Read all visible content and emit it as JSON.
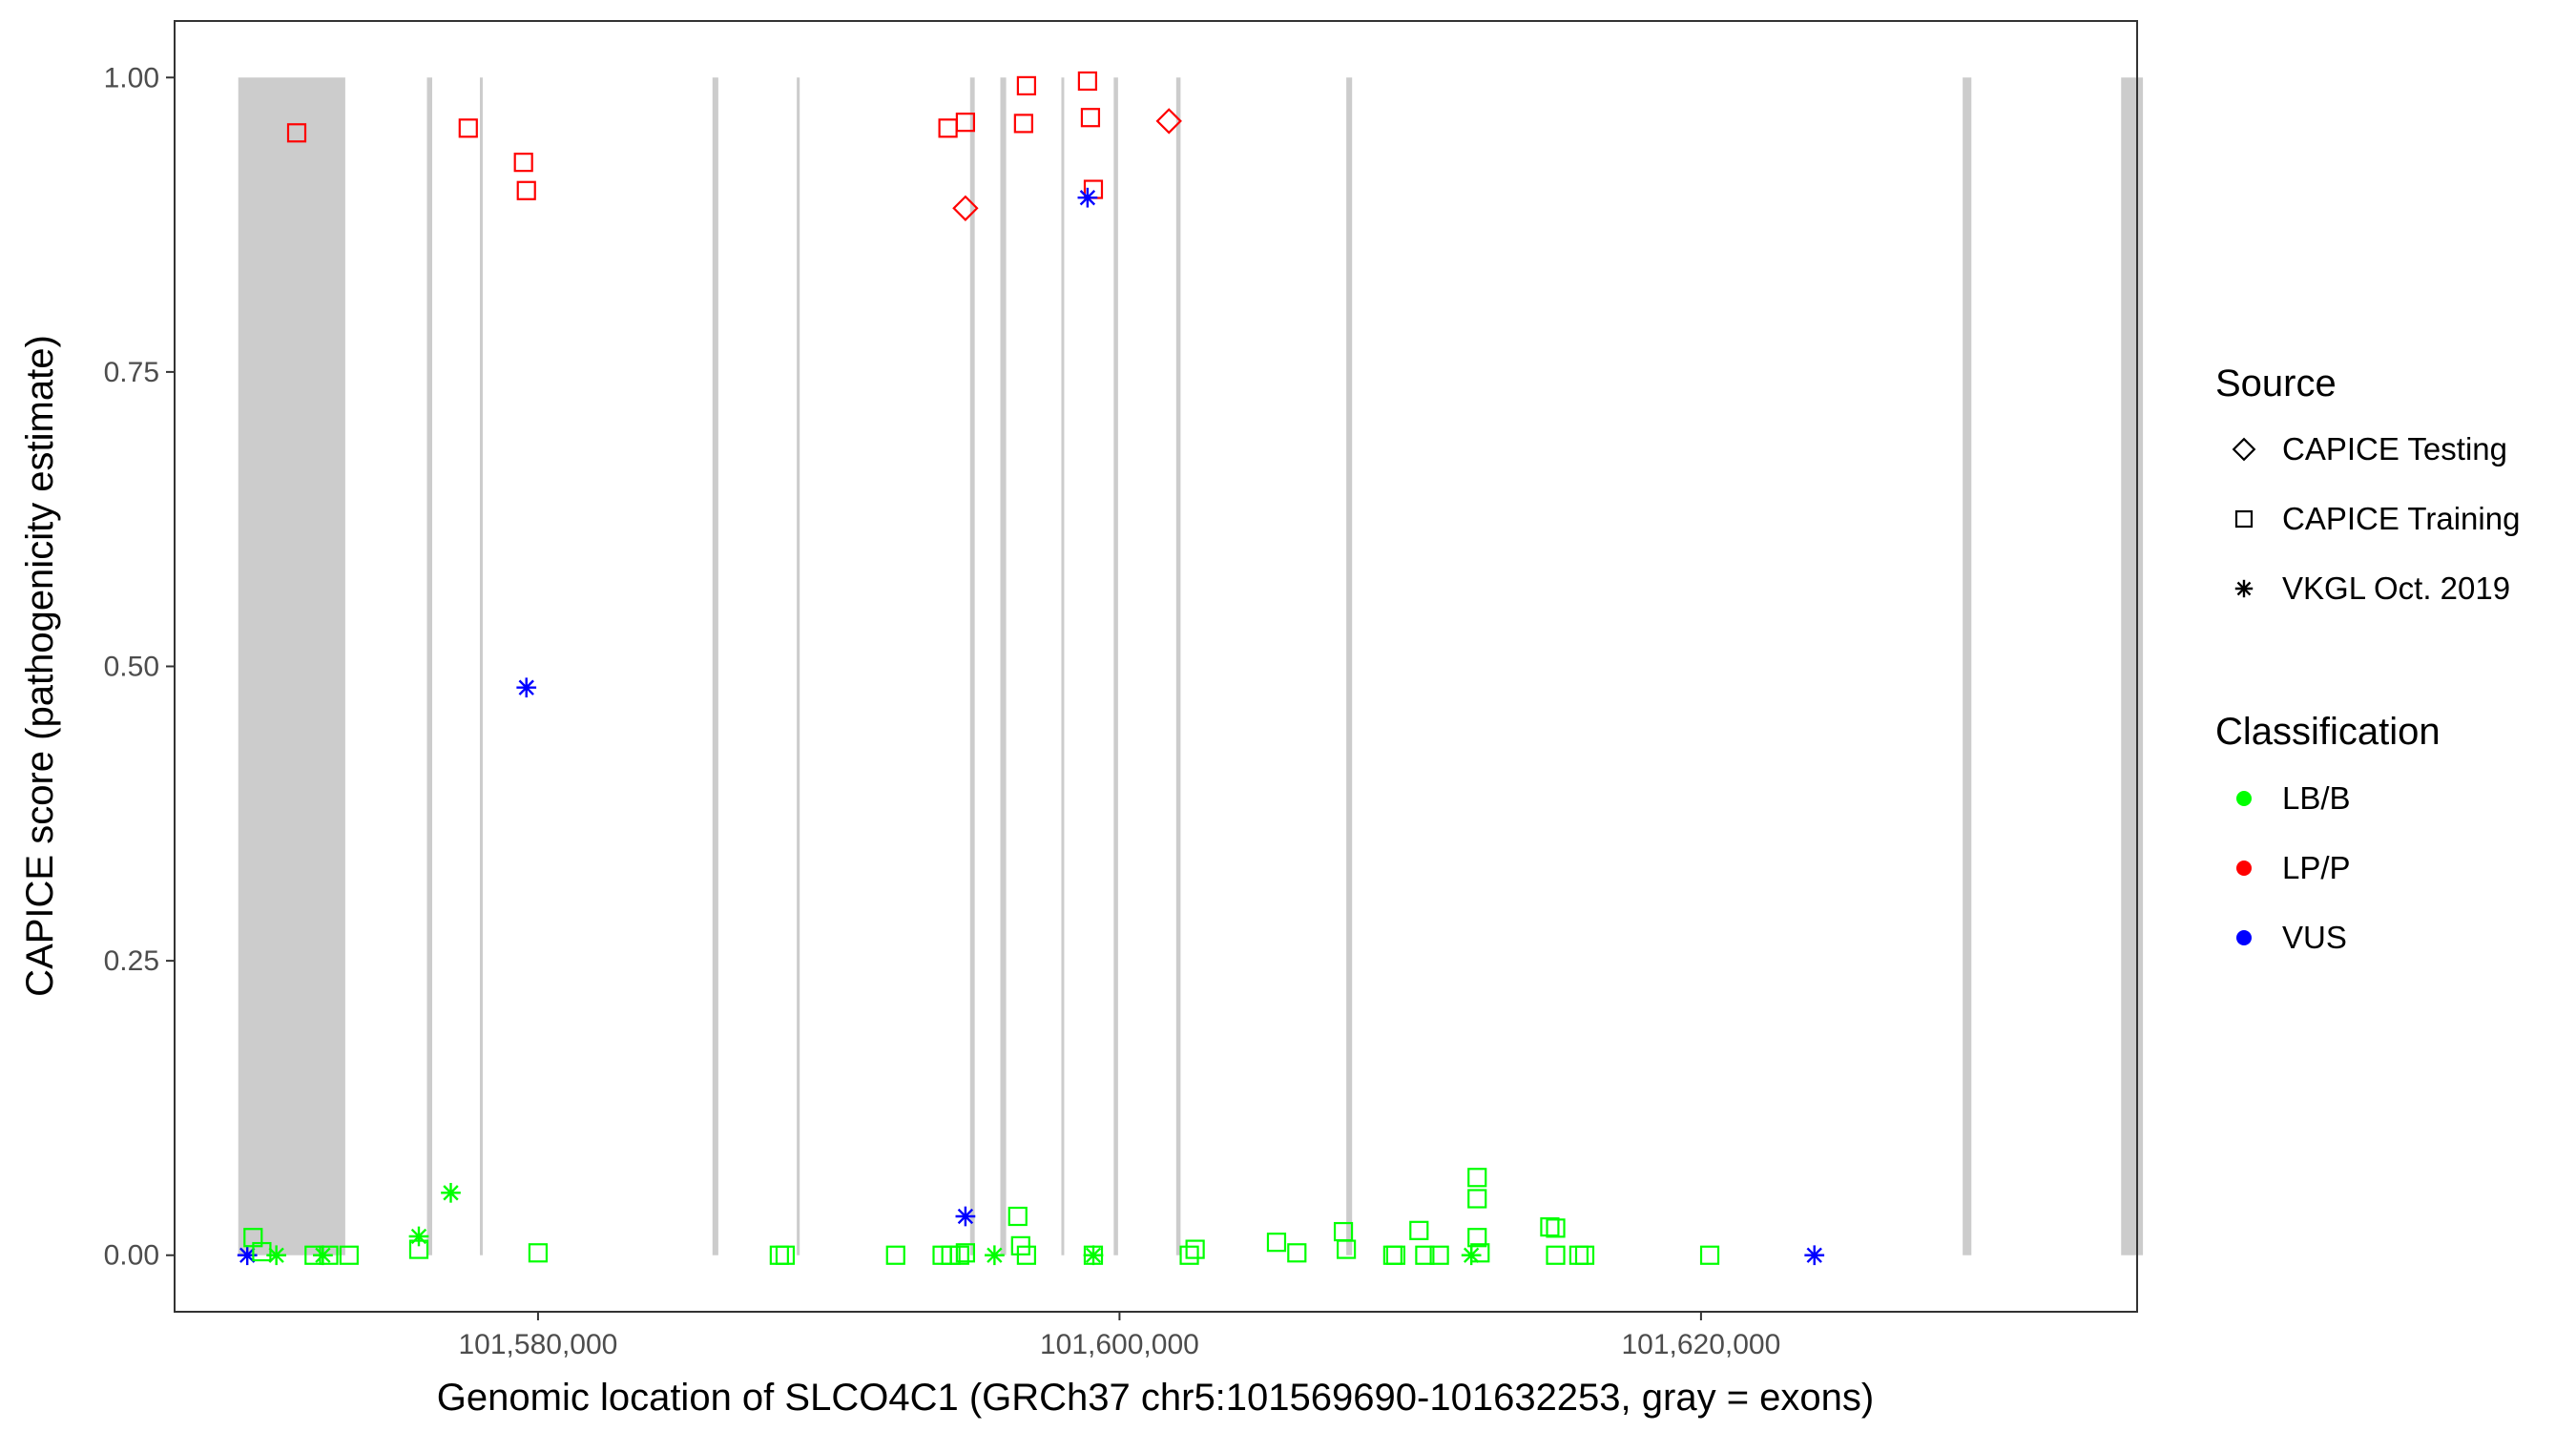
{
  "chart_data": {
    "type": "scatter",
    "title": "",
    "xlabel": "Genomic location of SLCO4C1 (GRCh37 chr5:101569690-101632253, gray = exons)",
    "ylabel": "CAPICE score (pathogenicity estimate)",
    "xlim": [
      101567500,
      101635000
    ],
    "ylim": [
      -0.048,
      1.048
    ],
    "x_ticks": [
      101580000,
      101600000,
      101620000
    ],
    "x_tick_labels": [
      "101,580,000",
      "101,600,000",
      "101,620,000"
    ],
    "y_ticks": [
      0,
      0.25,
      0.5,
      0.75,
      1.0
    ],
    "y_tick_labels": [
      "0.00",
      "0.25",
      "0.50",
      "0.75",
      "1.00"
    ],
    "grid": false,
    "exons": [
      [
        101569690,
        101573370
      ],
      [
        101576180,
        101576360
      ],
      [
        101578000,
        101578050
      ],
      [
        101586000,
        101586200
      ],
      [
        101588900,
        101589000
      ],
      [
        101594860,
        101595020
      ],
      [
        101595900,
        101596100
      ],
      [
        101598000,
        101598050
      ],
      [
        101599800,
        101599950
      ],
      [
        101601950,
        101602100
      ],
      [
        101607800,
        101608000
      ],
      [
        101629000,
        101629300
      ],
      [
        101634450,
        101635200
      ]
    ],
    "exon_color": "#cccccc",
    "colors": {
      "LB/B": "#00ff00",
      "LP/P": "#ff0000",
      "VUS": "#0000ff"
    },
    "legend_position": "right",
    "legend": {
      "source_title": "Source",
      "source_items": [
        {
          "label": "CAPICE Testing",
          "shape": "diamond"
        },
        {
          "label": "CAPICE Training",
          "shape": "square"
        },
        {
          "label": "VKGL Oct. 2019",
          "shape": "asterisk"
        }
      ],
      "class_title": "Classification",
      "class_items": [
        {
          "label": "LB/B",
          "color": "#00ff00"
        },
        {
          "label": "LP/P",
          "color": "#ff0000"
        },
        {
          "label": "VUS",
          "color": "#0000ff"
        }
      ]
    },
    "series": [
      {
        "classification": "LP/P",
        "source": "CAPICE Training",
        "shape": "square",
        "points": [
          [
            101571700,
            0.953
          ],
          [
            101577600,
            0.957
          ],
          [
            101579500,
            0.928
          ],
          [
            101579600,
            0.904
          ],
          [
            101594100,
            0.957
          ],
          [
            101594700,
            0.962
          ],
          [
            101596800,
            0.993
          ],
          [
            101596700,
            0.961
          ],
          [
            101598900,
            0.997
          ],
          [
            101599000,
            0.966
          ],
          [
            101599100,
            0.905
          ]
        ]
      },
      {
        "classification": "LP/P",
        "source": "CAPICE Testing",
        "shape": "diamond",
        "points": [
          [
            101594700,
            0.889
          ],
          [
            101601700,
            0.963
          ]
        ]
      },
      {
        "classification": "VUS",
        "source": "VKGL Oct. 2019",
        "shape": "asterisk",
        "points": [
          [
            101570000,
            0.0
          ],
          [
            101579600,
            0.482
          ],
          [
            101594700,
            0.033
          ],
          [
            101598900,
            0.898
          ],
          [
            101623900,
            0.0
          ]
        ]
      },
      {
        "classification": "LB/B",
        "source": "VKGL Oct. 2019",
        "shape": "asterisk",
        "points": [
          [
            101571000,
            0.0
          ],
          [
            101572600,
            0.0
          ],
          [
            101575900,
            0.016
          ],
          [
            101577000,
            0.053
          ],
          [
            101595700,
            0.0
          ],
          [
            101599100,
            0.0
          ],
          [
            101612100,
            0.0
          ]
        ]
      },
      {
        "classification": "LB/B",
        "source": "CAPICE Training",
        "shape": "square",
        "points": [
          [
            101570200,
            0.015
          ],
          [
            101570500,
            0.003
          ],
          [
            101572300,
            0.0
          ],
          [
            101572800,
            0.0
          ],
          [
            101573500,
            0.0
          ],
          [
            101575900,
            0.005
          ],
          [
            101580000,
            0.002
          ],
          [
            101588300,
            0.0
          ],
          [
            101588500,
            0.0
          ],
          [
            101592300,
            0.0
          ],
          [
            101593900,
            0.0
          ],
          [
            101594200,
            0.0
          ],
          [
            101594500,
            0.0
          ],
          [
            101594700,
            0.002
          ],
          [
            101596500,
            0.033
          ],
          [
            101596600,
            0.008
          ],
          [
            101596800,
            0.0
          ],
          [
            101599100,
            0.0
          ],
          [
            101602400,
            0.0
          ],
          [
            101602600,
            0.005
          ],
          [
            101605400,
            0.011
          ],
          [
            101606100,
            0.002
          ],
          [
            101607700,
            0.02
          ],
          [
            101607800,
            0.005
          ],
          [
            101609400,
            0.0
          ],
          [
            101609500,
            0.0
          ],
          [
            101610300,
            0.021
          ],
          [
            101610500,
            0.0
          ],
          [
            101611000,
            0.0
          ],
          [
            101612300,
            0.066
          ],
          [
            101612300,
            0.048
          ],
          [
            101612300,
            0.015
          ],
          [
            101612400,
            0.002
          ],
          [
            101614800,
            0.024
          ],
          [
            101615000,
            0.023
          ],
          [
            101615000,
            0.0
          ],
          [
            101615800,
            0.0
          ],
          [
            101616000,
            0.0
          ],
          [
            101620300,
            0.0
          ]
        ]
      }
    ]
  }
}
